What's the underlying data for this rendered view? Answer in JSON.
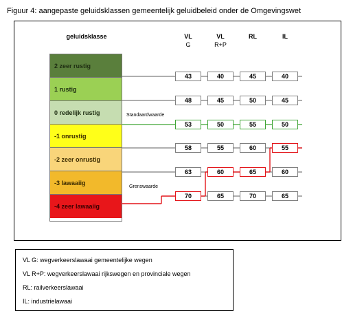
{
  "caption": "Figuur 4: aangepaste geluidsklassen gemeentelijk geluidbeleid onder de Omgevingswet",
  "header": {
    "class_label": "geluidsklasse",
    "columns": [
      {
        "code": "VL",
        "sub": "G"
      },
      {
        "code": "VL",
        "sub": "R+P"
      },
      {
        "code": "RL",
        "sub": ""
      },
      {
        "code": "IL",
        "sub": ""
      }
    ]
  },
  "classes": [
    {
      "label": "2  zeer rustig",
      "color": "#5a7f3c",
      "text_color": "#1e2d12"
    },
    {
      "label": "1  rustig",
      "color": "#9bd054",
      "text_color": "#1e2d12"
    },
    {
      "label": "0  redelijk rustig",
      "color": "#c6ddb1",
      "text_color": "#1e2d12"
    },
    {
      "label": "-1  onrustig",
      "color": "#ffff19",
      "text_color": "#3a2a00"
    },
    {
      "label": "-2  zeer onrustig",
      "color": "#f9d57a",
      "text_color": "#3a2a00"
    },
    {
      "label": "-3  lawaaiig",
      "color": "#f2b92b",
      "text_color": "#3a2a00"
    },
    {
      "label": "-4  zeer lawaaiig",
      "color": "#e8161a",
      "text_color": "#3a0000"
    }
  ],
  "annotations": {
    "standaard": "Standaardwaarde",
    "grens": "Grenswaarde"
  },
  "rows": [
    {
      "values": [
        "43",
        "40",
        "45",
        "40"
      ],
      "line": "gray",
      "boxes": [
        "gray",
        "gray",
        "gray",
        "gray"
      ]
    },
    {
      "values": [
        "48",
        "45",
        "50",
        "45"
      ],
      "line": "gray",
      "boxes": [
        "gray",
        "gray",
        "gray",
        "gray"
      ]
    },
    {
      "values": [
        "53",
        "50",
        "55",
        "50"
      ],
      "line": "green",
      "boxes": [
        "green",
        "green",
        "green",
        "green"
      ]
    },
    {
      "values": [
        "58",
        "55",
        "60",
        "55"
      ],
      "line": "gray",
      "boxes": [
        "gray",
        "gray",
        "gray",
        "red"
      ]
    },
    {
      "values": [
        "63",
        "60",
        "65",
        "60"
      ],
      "line": "gray",
      "boxes": [
        "gray",
        "red",
        "red",
        "gray"
      ]
    },
    {
      "values": [
        "70",
        "65",
        "70",
        "65"
      ],
      "line": "red",
      "boxes": [
        "red",
        "gray",
        "gray",
        "gray"
      ]
    }
  ],
  "colors": {
    "gray": "#7f7f7f",
    "green": "#3fa535",
    "red": "#e3151a"
  },
  "legend": [
    "VL G: wegverkeerslawaai gemeentelijke wegen",
    "VL R+P: wegverkeerslawaai rijkswegen en provinciale wegen",
    "RL: railverkeerslawaai",
    "IL: industrielawaai"
  ]
}
